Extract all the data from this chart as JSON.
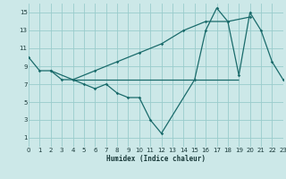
{
  "bg_color": "#cce8e8",
  "grid_color": "#99cccc",
  "line_color": "#1a6b6b",
  "xlabel": "Humidex (Indice chaleur)",
  "xlim": [
    0,
    23
  ],
  "ylim": [
    0,
    16
  ],
  "xticks": [
    0,
    1,
    2,
    3,
    4,
    5,
    6,
    7,
    8,
    9,
    10,
    11,
    12,
    13,
    14,
    15,
    16,
    17,
    18,
    19,
    20,
    21,
    22,
    23
  ],
  "yticks": [
    1,
    3,
    5,
    7,
    9,
    11,
    13,
    15
  ],
  "line1_x": [
    0,
    1,
    2,
    3,
    4,
    5,
    6,
    7,
    8,
    9,
    10,
    11,
    12,
    15,
    16,
    17,
    18,
    19,
    20,
    21,
    22,
    23
  ],
  "line1_y": [
    10,
    8.5,
    8.5,
    7.5,
    7.5,
    7.0,
    6.5,
    7.0,
    6.0,
    5.5,
    5.5,
    3.0,
    1.5,
    7.5,
    13.0,
    15.5,
    14.0,
    8.0,
    15.0,
    13.0,
    9.5,
    7.5
  ],
  "line2_x": [
    2,
    4,
    6,
    8,
    10,
    12,
    14,
    16,
    18,
    20
  ],
  "line2_y": [
    8.5,
    7.5,
    8.5,
    9.5,
    10.5,
    11.5,
    13.0,
    14.0,
    14.0,
    14.5
  ],
  "hline_y": 7.5,
  "hline_x_start": 4,
  "hline_x_end": 19
}
